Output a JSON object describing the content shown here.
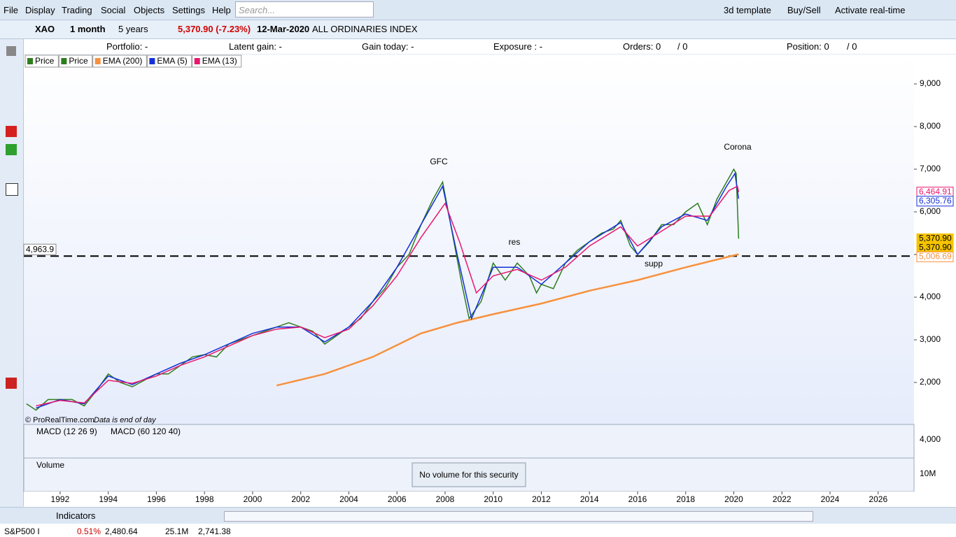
{
  "menu": {
    "items": [
      "File",
      "Display",
      "Trading",
      "Social",
      "Objects",
      "Settings",
      "Help"
    ],
    "search": "Search...",
    "right": [
      "3d template",
      "Buy/Sell",
      "Activate real-time"
    ]
  },
  "toolbar": {
    "ticker": "XAO",
    "period": "1 month",
    "range": "5 years",
    "last": "5,370.90 (-7.23%)",
    "date": "12-Mar-2020",
    "name": "ALL ORDINARIES INDEX"
  },
  "portfolio": [
    "Portfolio: -",
    "Latent gain: -",
    "Gain today: -",
    "Exposure : -",
    "Orders: 0",
    "/ 0",
    "Position: 0",
    "/ 0"
  ],
  "bottom": {
    "indicators": "Indicators",
    "row": [
      "S&P500 I",
      "0.51%",
      "2,480.64",
      "25.1M",
      "2,741.38"
    ]
  },
  "chart_data": {
    "type": "line",
    "legend": [
      "Price",
      "Price"
    ],
    "series": [
      {
        "name": "Price",
        "color": "#2e7d1e",
        "x": [
          1990.6,
          1991,
          1991.5,
          1992.5,
          1993,
          1993.5,
          1994,
          1994.5,
          1995,
          1995.5,
          1996,
          1996.5,
          1997,
          1997.5,
          1998,
          1998.5,
          1999,
          1999.5,
          2000,
          2000.5,
          2001,
          2001.5,
          2002,
          2002.5,
          2003,
          2003.5,
          2004,
          2004.5,
          2005,
          2005.5,
          2006,
          2006.5,
          2007,
          2007.5,
          2007.9,
          2008.3,
          2008.7,
          2009,
          2009.5,
          2010,
          2010.5,
          2011,
          2011.5,
          2011.8,
          2012,
          2012.5,
          2013,
          2013.5,
          2014,
          2014.5,
          2015,
          2015.3,
          2015.7,
          2016,
          2016.5,
          2017,
          2017.5,
          2018,
          2018.5,
          2018.9,
          2019.3,
          2019.7,
          2020,
          2020.1,
          2020.2
        ],
        "values": [
          1500,
          1350,
          1600,
          1600,
          1450,
          1800,
          2200,
          2000,
          1900,
          2050,
          2200,
          2200,
          2400,
          2600,
          2650,
          2600,
          2900,
          3000,
          3100,
          3200,
          3300,
          3400,
          3300,
          3200,
          2900,
          3100,
          3300,
          3500,
          3900,
          4200,
          4700,
          5000,
          5700,
          6300,
          6700,
          5500,
          4300,
          3500,
          3900,
          4800,
          4400,
          4800,
          4500,
          4100,
          4300,
          4200,
          4800,
          5100,
          5300,
          5500,
          5600,
          5800,
          5200,
          5000,
          5300,
          5700,
          5700,
          6000,
          6200,
          5700,
          6300,
          6700,
          7000,
          6900,
          5370.9
        ]
      },
      {
        "name": "EMA (200)",
        "color": "#f7913d",
        "x": [
          2001,
          2003,
          2005,
          2007,
          2008.5,
          2010,
          2012,
          2014,
          2016,
          2018,
          2020.2
        ],
        "values": [
          1930,
          2200,
          2600,
          3150,
          3400,
          3600,
          3850,
          4150,
          4400,
          4700,
          5006.69
        ]
      },
      {
        "name": "EMA (5)",
        "color": "#1530d8",
        "x": [
          1991,
          1992,
          1993,
          1994,
          1995,
          1996,
          1997,
          1998,
          1999,
          2000,
          2001,
          2002,
          2003,
          2004,
          2005,
          2006,
          2007,
          2007.9,
          2008.5,
          2009.1,
          2010,
          2011,
          2012,
          2013,
          2014,
          2015.3,
          2016,
          2017,
          2018,
          2018.9,
          2019.7,
          2020.05,
          2020.2
        ],
        "values": [
          1400,
          1600,
          1500,
          2150,
          1950,
          2200,
          2450,
          2650,
          2900,
          3150,
          3300,
          3300,
          2950,
          3300,
          3900,
          4700,
          5700,
          6600,
          5000,
          3500,
          4700,
          4700,
          4300,
          4800,
          5300,
          5750,
          5000,
          5650,
          5950,
          5800,
          6600,
          6900,
          6305.76
        ]
      },
      {
        "name": "EMA (13)",
        "color": "#e8186e",
        "x": [
          1991,
          1992,
          1993,
          1994,
          1995,
          1996,
          1997,
          1998,
          1999,
          2000,
          2001,
          2002,
          2003,
          2004,
          2005,
          2006,
          2007,
          2008,
          2008.6,
          2009.3,
          2010,
          2011,
          2012,
          2013,
          2014,
          2015.3,
          2016,
          2017,
          2018,
          2019,
          2019.8,
          2020.15,
          2020.2
        ],
        "values": [
          1450,
          1580,
          1520,
          2050,
          1980,
          2150,
          2400,
          2600,
          2850,
          3100,
          3250,
          3300,
          3050,
          3250,
          3800,
          4500,
          5400,
          6200,
          5300,
          4100,
          4500,
          4650,
          4400,
          4700,
          5200,
          5650,
          5200,
          5550,
          5900,
          5900,
          6500,
          6600,
          6464.91
        ]
      }
    ],
    "legend_order": [
      1,
      2,
      3
    ],
    "xlim": [
      1990.49,
      2027.49
    ],
    "xticks": [
      1992,
      1994,
      1996,
      1998,
      2000,
      2002,
      2004,
      2006,
      2008,
      2010,
      2012,
      2014,
      2016,
      2018,
      2020,
      2022,
      2024,
      2026
    ],
    "ylim": [
      1016,
      9689
    ],
    "yticks": [
      {
        "value": 2000,
        "label": "2,000"
      },
      {
        "value": 3000,
        "label": "3,000"
      },
      {
        "value": 4000,
        "label": "4,000"
      },
      {
        "value": 5000,
        "label": "5,000"
      },
      {
        "value": 6000,
        "label": "6,000"
      },
      {
        "value": 7000,
        "label": "7,000"
      },
      {
        "value": 8000,
        "label": "8,000"
      },
      {
        "value": 9000,
        "label": "9,000"
      }
    ],
    "hline": {
      "value": 4963.9,
      "label": "4,963.9"
    },
    "price_labels": [
      {
        "value": 6464.91,
        "label": "6,464.91",
        "color": "#e8186e"
      },
      {
        "value": 6305.76,
        "label": "6,305.76",
        "color": "#1530d8"
      },
      {
        "value": 5370.9,
        "label": "5,370.90",
        "color": "#f5c400"
      },
      {
        "value": 5370.9,
        "label": "5,370.90",
        "color": "#f5c400"
      },
      {
        "value": 5006.69,
        "label": "5,006.69",
        "color": "#f7913d"
      }
    ],
    "annotations": [
      "GFC",
      "res",
      "supp",
      "Corona"
    ],
    "footer": [
      "© ProRealTime.com",
      "Data is end of day"
    ],
    "macd": {
      "labels": [
        "MACD (12 26 9)",
        "MACD (60 120 40)"
      ],
      "tick": "4,000"
    },
    "volume": {
      "label": "Volume",
      "tick": "10M",
      "message": "No volume for this security"
    }
  }
}
